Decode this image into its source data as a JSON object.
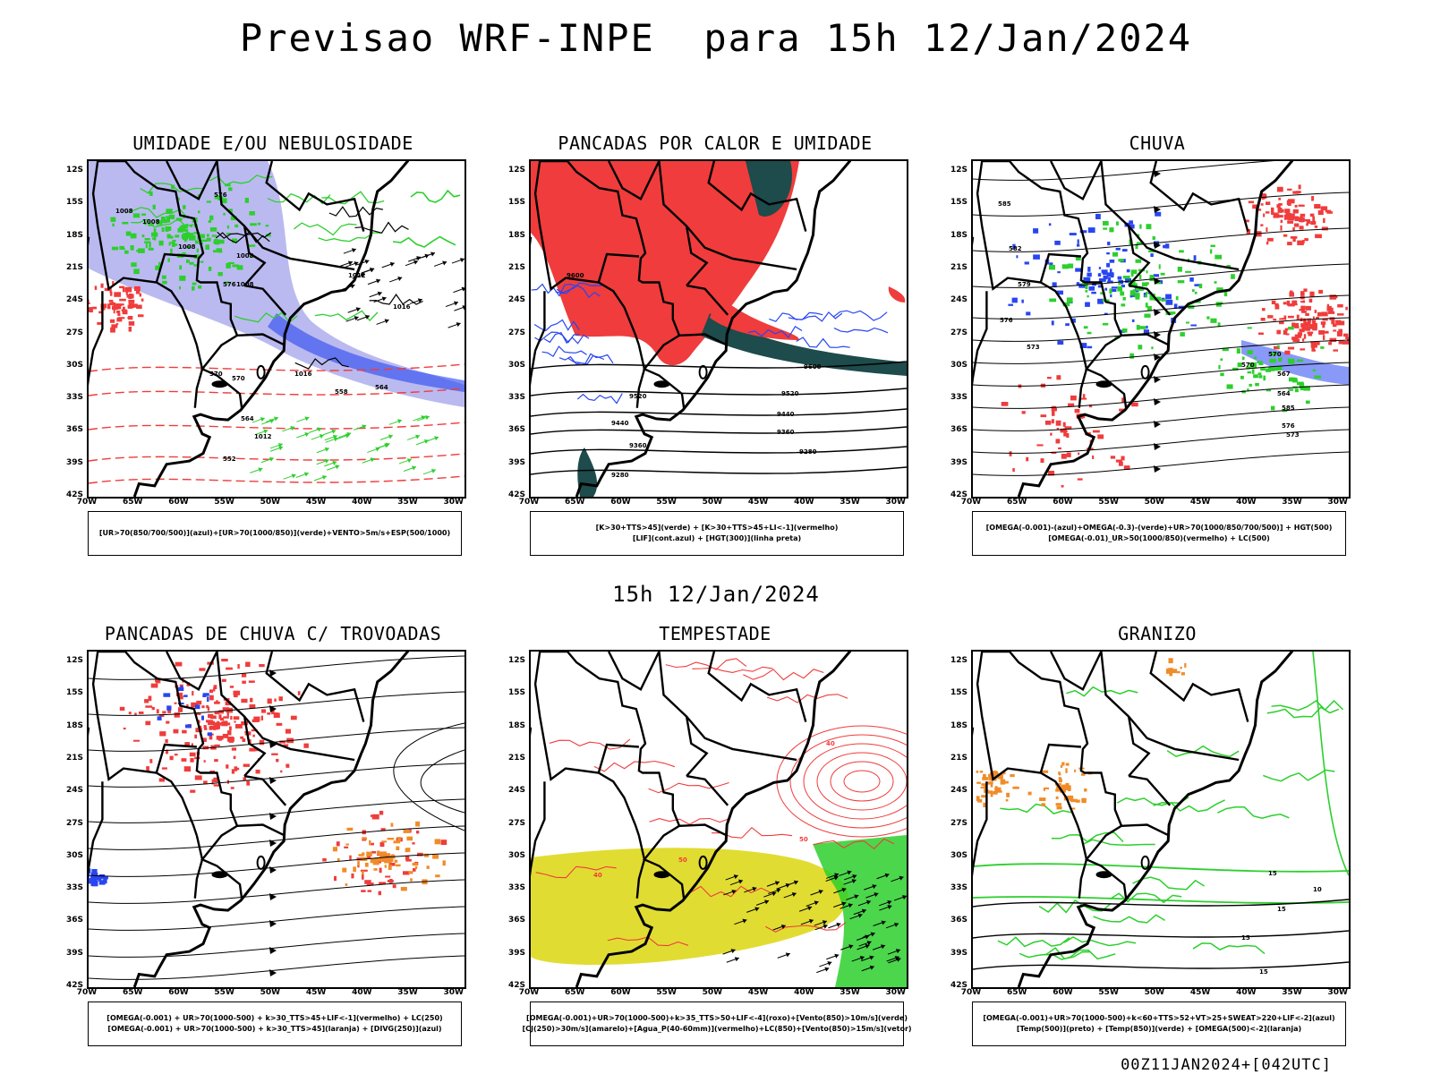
{
  "title": "Previsao WRF-INPE  para 15h 12/Jan/2024",
  "mid_title": "15h 12/Jan/2024",
  "footer": "00Z11JAN2024+[042UTC]",
  "axes": {
    "lat_labels": [
      "12S",
      "15S",
      "18S",
      "21S",
      "24S",
      "27S",
      "30S",
      "33S",
      "36S",
      "39S",
      "42S"
    ],
    "lon_labels": [
      "70W",
      "65W",
      "60W",
      "55W",
      "50W",
      "45W",
      "40W",
      "35W",
      "30W"
    ]
  },
  "colors": {
    "red": "#f03c3c",
    "green": "#2dcf2d",
    "blue": "#2846f0",
    "lavender": "#a9a9ec",
    "teal": "#1e4b4b",
    "yellow": "#e1dc32",
    "orange": "#f08c28",
    "black": "#000000"
  },
  "panels": [
    {
      "id": "umidade",
      "title": "UMIDADE E/OU NEBULOSIDADE",
      "legend": [
        "[UR>70(850/700/500)](azul)+[UR>70(1000/850)](verde)+VENTO>5m/s+ESP(500/1000)"
      ],
      "contour_labels": [
        "1008",
        "1008",
        "1008",
        "1008",
        "1012",
        "1016",
        "1016",
        "1012",
        "1008",
        "576",
        "576",
        "570",
        "564",
        "558",
        "552",
        "570",
        "564"
      ]
    },
    {
      "id": "pancadas-calor",
      "title": "PANCADAS POR CALOR E UMIDADE",
      "legend": [
        "[K>30+TTS>45](verde) + [K>30+TTS>45+LI<-1](vermelho)",
        "[LIF](cont.azul) + [HGT(300)](linha preta)"
      ],
      "contour_labels": [
        "9600",
        "9520",
        "9440",
        "9360",
        "9280",
        "9600",
        "9520",
        "9440",
        "9360",
        "9280"
      ]
    },
    {
      "id": "chuva",
      "title": "CHUVA",
      "legend": [
        "[OMEGA(-0.001)-(azul)+OMEGA(-0.3)-(verde)+UR>70(1000/850/700/500)] + HGT(500)",
        "[OMEGA(-0.01)_UR>50(1000/850)(vermelho) + LC(500)"
      ],
      "contour_labels": [
        "585",
        "582",
        "579",
        "576",
        "573",
        "570",
        "567",
        "564",
        "585",
        "576",
        "573",
        "570"
      ]
    },
    {
      "id": "trovoadas",
      "title": "PANCADAS DE CHUVA C/ TROVOADAS",
      "legend": [
        "[OMEGA(-0.001) + UR>70(1000-500) + k>30_TTS>45+LIF<-1](vermelho) + LC(250)",
        "[OMEGA(-0.001) + UR>70(1000-500) + k>30_TTS>45](laranja) + [DIVG(250)](azul)"
      ],
      "contour_labels": []
    },
    {
      "id": "tempestade",
      "title": "TEMPESTADE",
      "legend": [
        "[OMEGA(-0.001)+UR>70(1000-500)+k>35_TTS>50+LIF<-4](roxo)+[Vento(850)>10m/s](verde)",
        "[CJ(250)>30m/s](amarelo)+[Agua_P(40-60mm)](vermelho)+LC(850)+[Vento(850)>15m/s](vetor)"
      ],
      "contour_labels": [
        "40",
        "50",
        "40",
        "50"
      ]
    },
    {
      "id": "granizo",
      "title": "GRANIZO",
      "legend": [
        "[OMEGA(-0.001)+UR>70(1000-500)+k<60+TTS>52+VT>25+SWEAT>220+LIF<-2](azul)",
        "[Temp(500)](preto) + [Temp(850)](verde) + [OMEGA(500)<-2](laranja)"
      ],
      "contour_labels": [
        "15",
        "15",
        "10",
        "15",
        "15"
      ]
    }
  ]
}
